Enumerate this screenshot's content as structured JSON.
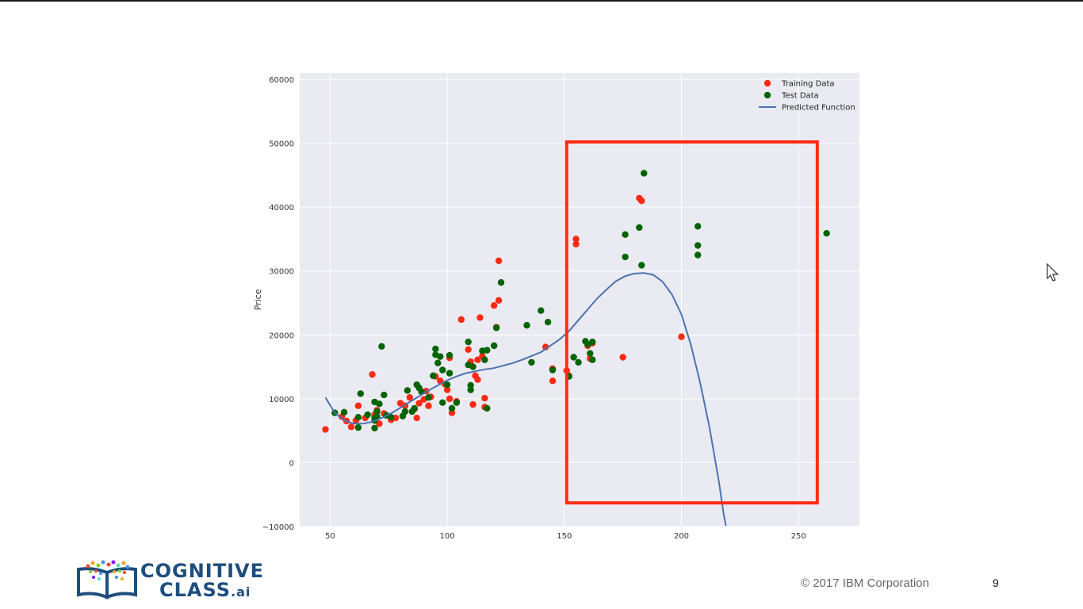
{
  "chart_data": {
    "type": "scatter",
    "ylabel": "Price",
    "xlabel": "",
    "xlim": [
      37,
      276
    ],
    "ylim": [
      -10000,
      61000
    ],
    "x_ticks": [
      50,
      100,
      150,
      200,
      250
    ],
    "y_ticks": [
      -10000,
      0,
      10000,
      20000,
      30000,
      40000,
      50000,
      60000
    ],
    "x_tick_labels": [
      "50",
      "100",
      "150",
      "200",
      "250"
    ],
    "y_tick_labels": [
      "−10000",
      "0",
      "10000",
      "20000",
      "30000",
      "40000",
      "50000",
      "60000"
    ],
    "grid": true,
    "legend_position": "top-right",
    "legend": [
      {
        "label": "Training Data",
        "kind": "marker",
        "color": "#ff2a14"
      },
      {
        "label": "Test Data",
        "kind": "marker",
        "color": "#006400"
      },
      {
        "label": "Predicted Function",
        "kind": "line",
        "color": "#4c72b0"
      }
    ],
    "series": [
      {
        "name": "Training Data",
        "color": "#ff2a14",
        "points": [
          [
            48,
            5200
          ],
          [
            55,
            7200
          ],
          [
            57,
            6500
          ],
          [
            59,
            5600
          ],
          [
            61,
            6600
          ],
          [
            62,
            8900
          ],
          [
            65,
            7000
          ],
          [
            68,
            13800
          ],
          [
            69,
            7500
          ],
          [
            70,
            8200
          ],
          [
            71,
            6100
          ],
          [
            73,
            7700
          ],
          [
            76,
            6700
          ],
          [
            78,
            7000
          ],
          [
            80,
            9300
          ],
          [
            82,
            8900
          ],
          [
            84,
            10200
          ],
          [
            86,
            8400
          ],
          [
            87,
            7000
          ],
          [
            88,
            9300
          ],
          [
            90,
            9900
          ],
          [
            91,
            11200
          ],
          [
            92,
            8900
          ],
          [
            93,
            10300
          ],
          [
            95,
            13500
          ],
          [
            97,
            12800
          ],
          [
            99,
            12300
          ],
          [
            100,
            11400
          ],
          [
            101,
            16400
          ],
          [
            101,
            10000
          ],
          [
            102,
            7800
          ],
          [
            104,
            9600
          ],
          [
            106,
            22400
          ],
          [
            109,
            17700
          ],
          [
            110,
            15800
          ],
          [
            111,
            9100
          ],
          [
            112,
            13600
          ],
          [
            113,
            13000
          ],
          [
            113,
            16100
          ],
          [
            114,
            22700
          ],
          [
            115,
            16700
          ],
          [
            116,
            8700
          ],
          [
            116,
            10100
          ],
          [
            120,
            24600
          ],
          [
            121,
            21200
          ],
          [
            122,
            25400
          ],
          [
            122,
            31600
          ],
          [
            142,
            18100
          ],
          [
            145,
            12800
          ],
          [
            145,
            14700
          ],
          [
            151,
            14400
          ],
          [
            152,
            13600
          ],
          [
            155,
            35000
          ],
          [
            155,
            34200
          ],
          [
            160,
            18300
          ],
          [
            161,
            16300
          ],
          [
            162,
            18700
          ],
          [
            175,
            16500
          ],
          [
            182,
            41400
          ],
          [
            183,
            41000
          ],
          [
            200,
            19700
          ]
        ]
      },
      {
        "name": "Test Data",
        "color": "#006400",
        "points": [
          [
            52,
            7800
          ],
          [
            56,
            7900
          ],
          [
            62,
            5500
          ],
          [
            62,
            7100
          ],
          [
            63,
            10800
          ],
          [
            66,
            7500
          ],
          [
            69,
            5400
          ],
          [
            69,
            6600
          ],
          [
            69,
            7000
          ],
          [
            69,
            9500
          ],
          [
            70,
            7200
          ],
          [
            70,
            8000
          ],
          [
            71,
            9200
          ],
          [
            72,
            18200
          ],
          [
            73,
            10600
          ],
          [
            74,
            7400
          ],
          [
            76,
            7100
          ],
          [
            81,
            7300
          ],
          [
            82,
            8000
          ],
          [
            83,
            11300
          ],
          [
            85,
            8000
          ],
          [
            86,
            8500
          ],
          [
            87,
            12200
          ],
          [
            88,
            11700
          ],
          [
            89,
            11100
          ],
          [
            92,
            10200
          ],
          [
            94,
            13600
          ],
          [
            95,
            16900
          ],
          [
            95,
            17800
          ],
          [
            96,
            15600
          ],
          [
            97,
            16600
          ],
          [
            98,
            9400
          ],
          [
            98,
            14500
          ],
          [
            100,
            12200
          ],
          [
            101,
            14000
          ],
          [
            101,
            16800
          ],
          [
            102,
            8500
          ],
          [
            104,
            9400
          ],
          [
            109,
            18900
          ],
          [
            109,
            15300
          ],
          [
            110,
            12100
          ],
          [
            110,
            11400
          ],
          [
            111,
            15000
          ],
          [
            115,
            17500
          ],
          [
            116,
            16100
          ],
          [
            117,
            17600
          ],
          [
            117,
            8500
          ],
          [
            120,
            18300
          ],
          [
            121,
            21100
          ],
          [
            123,
            28200
          ],
          [
            134,
            21500
          ],
          [
            136,
            15700
          ],
          [
            140,
            23800
          ],
          [
            143,
            22000
          ],
          [
            145,
            14500
          ],
          [
            152,
            13500
          ],
          [
            154,
            16500
          ],
          [
            156,
            15700
          ],
          [
            159,
            19000
          ],
          [
            160,
            18500
          ],
          [
            161,
            17100
          ],
          [
            162,
            16100
          ],
          [
            162,
            18900
          ],
          [
            176,
            35700
          ],
          [
            176,
            32200
          ],
          [
            182,
            36800
          ],
          [
            183,
            30900
          ],
          [
            184,
            45300
          ],
          [
            207,
            37000
          ],
          [
            207,
            34000
          ],
          [
            207,
            32500
          ],
          [
            262,
            35900
          ]
        ]
      },
      {
        "name": "Predicted Function",
        "color": "#4c72b0",
        "type": "line",
        "points": [
          [
            48,
            10200
          ],
          [
            52,
            7800
          ],
          [
            56,
            6600
          ],
          [
            60,
            6100
          ],
          [
            64,
            6100
          ],
          [
            68,
            6400
          ],
          [
            72,
            7000
          ],
          [
            76,
            7700
          ],
          [
            80,
            8600
          ],
          [
            84,
            9500
          ],
          [
            88,
            10400
          ],
          [
            92,
            11300
          ],
          [
            96,
            12100
          ],
          [
            100,
            12900
          ],
          [
            104,
            13500
          ],
          [
            108,
            14000
          ],
          [
            112,
            14300
          ],
          [
            116,
            14600
          ],
          [
            120,
            14800
          ],
          [
            124,
            15200
          ],
          [
            128,
            15600
          ],
          [
            132,
            16100
          ],
          [
            136,
            16700
          ],
          [
            140,
            17300
          ],
          [
            144,
            18300
          ],
          [
            148,
            19300
          ],
          [
            152,
            20600
          ],
          [
            156,
            22300
          ],
          [
            160,
            24000
          ],
          [
            164,
            25700
          ],
          [
            168,
            27100
          ],
          [
            172,
            28400
          ],
          [
            176,
            29200
          ],
          [
            180,
            29600
          ],
          [
            184,
            29700
          ],
          [
            188,
            29400
          ],
          [
            192,
            28300
          ],
          [
            196,
            26300
          ],
          [
            200,
            23200
          ],
          [
            204,
            18500
          ],
          [
            208,
            12500
          ],
          [
            212,
            5500
          ],
          [
            216,
            -3000
          ],
          [
            218,
            -8000
          ],
          [
            219,
            -9900
          ]
        ]
      }
    ],
    "highlight_box": {
      "x": [
        151,
        258
      ],
      "y": [
        -6300,
        50200
      ],
      "color": "#ff2a14"
    }
  },
  "footer": {
    "logo_line1": "COGNITIVE",
    "logo_line2": "CLASS",
    "logo_suffix": ".ai",
    "copyright": "© 2017 IBM Corporation",
    "page_number": "9"
  }
}
